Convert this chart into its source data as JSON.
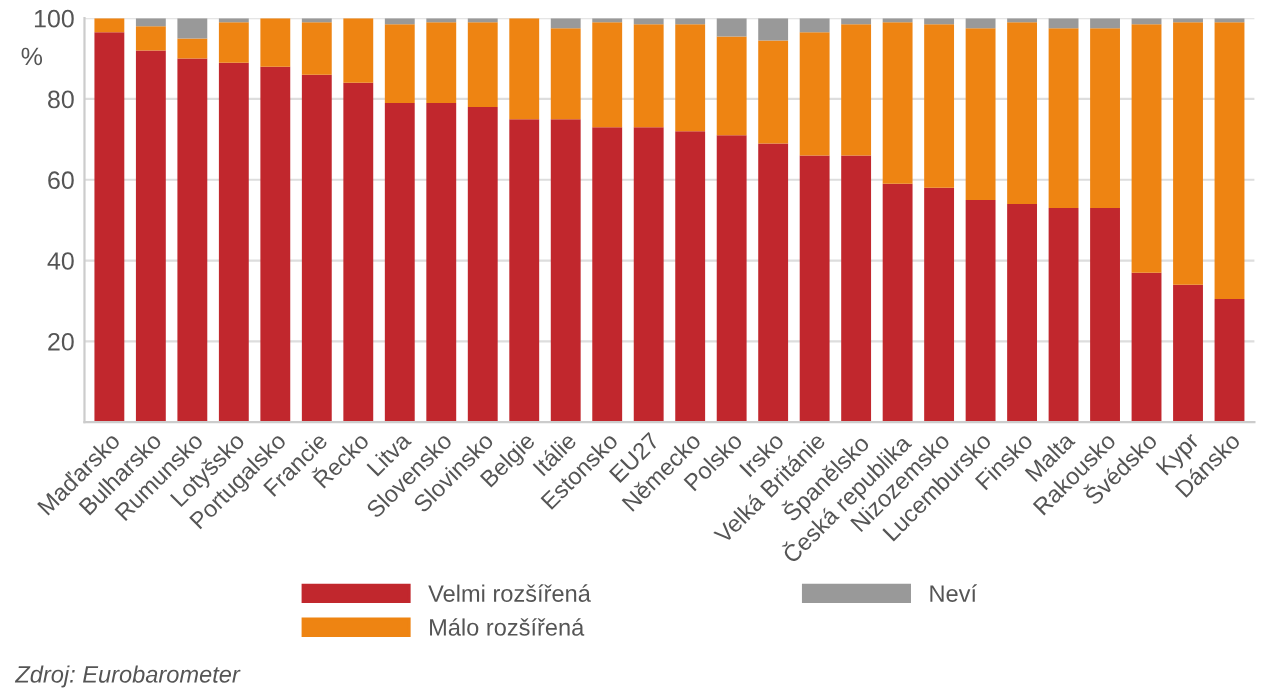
{
  "chart_data": {
    "type": "bar",
    "stacked": true,
    "ylabel": "%",
    "ylim": [
      0,
      100
    ],
    "yticks": [
      20,
      40,
      60,
      80,
      100
    ],
    "grid": "y",
    "legend": "bottom",
    "categories": [
      "Maďarsko",
      "Bulharsko",
      "Rumunsko",
      "Lotyšsko",
      "Portugalsko",
      "Francie",
      "Řecko",
      "Litva",
      "Slovensko",
      "Slovinsko",
      "Belgie",
      "Itálie",
      "Estonsko",
      "EU27",
      "Německo",
      "Polsko",
      "Irsko",
      "Velká Británie",
      "Španělsko",
      "Česká republika",
      "Nizozemsko",
      "Lucembursko",
      "Finsko",
      "Malta",
      "Rakousko",
      "Švédsko",
      "Kypr",
      "Dánsko"
    ],
    "series": [
      {
        "name": "Velmi rozšířená",
        "color": "#c1272d",
        "values": [
          96.5,
          92,
          90,
          89,
          88,
          86,
          84,
          79,
          79,
          78,
          75,
          75,
          73,
          73,
          72,
          71,
          69,
          66,
          66,
          59,
          58,
          55,
          54,
          53,
          53,
          37,
          34,
          30.5
        ]
      },
      {
        "name": "Málo rozšířená",
        "color": "#ee8412",
        "values": [
          3.5,
          6,
          5,
          10,
          12,
          13,
          16,
          19.5,
          20,
          21,
          25,
          22.5,
          26,
          25.5,
          26.5,
          24.5,
          25.5,
          30.5,
          32.5,
          40,
          40.5,
          42.5,
          45,
          44.5,
          44.5,
          61.5,
          65,
          68.5
        ]
      },
      {
        "name": "Neví",
        "color": "#999999",
        "values": [
          0,
          2,
          5,
          1,
          0,
          1,
          0,
          1.5,
          1,
          1,
          0,
          2.5,
          1,
          1.5,
          1.5,
          4.5,
          5.5,
          3.5,
          1.5,
          1,
          1.5,
          2.5,
          1,
          2.5,
          2.5,
          1.5,
          1,
          1
        ]
      }
    ],
    "annotations": [
      "Zdroj: Eurobarometer"
    ]
  }
}
